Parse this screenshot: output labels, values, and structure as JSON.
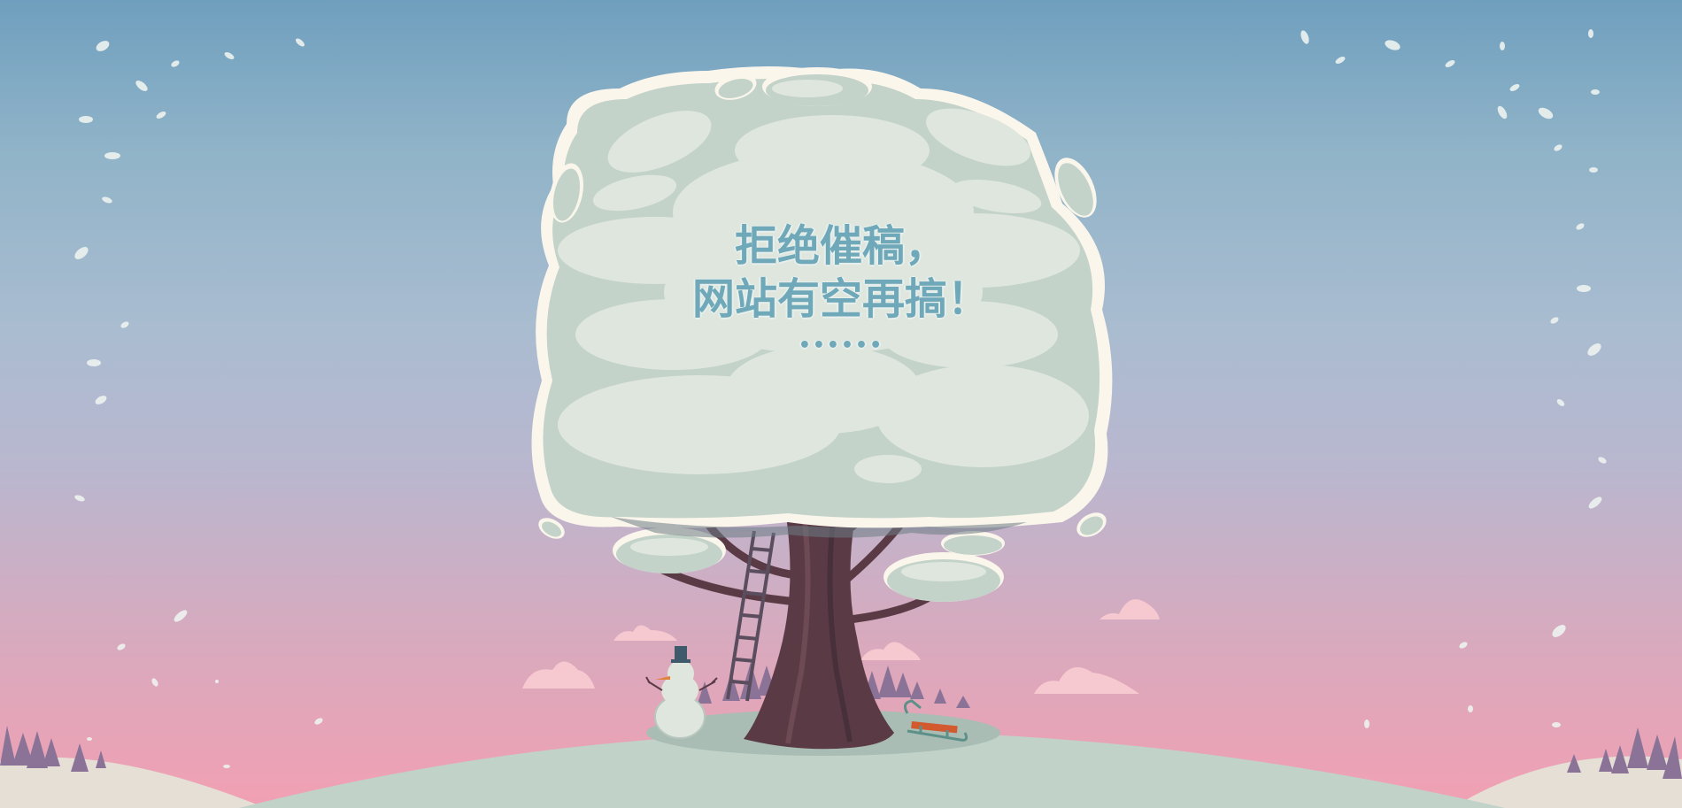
{
  "message": {
    "line1": "拒绝催稿，",
    "line2": "网站有空再搞！",
    "dots": "••••••"
  },
  "colors": {
    "sky_top": "#6f9fbe",
    "sky_bottom": "#f2a0b3",
    "foliage": "#c3d3c9",
    "foliage_light": "#dfe6de",
    "foliage_outline": "#fbf6ec",
    "trunk": "#5a3b45",
    "hill": "#c1d2c8",
    "text": "#6fa8b8"
  },
  "icons": {
    "tree": "tree-icon",
    "snowman": "snowman-icon",
    "sled": "sled-icon",
    "ladder": "ladder-icon"
  }
}
